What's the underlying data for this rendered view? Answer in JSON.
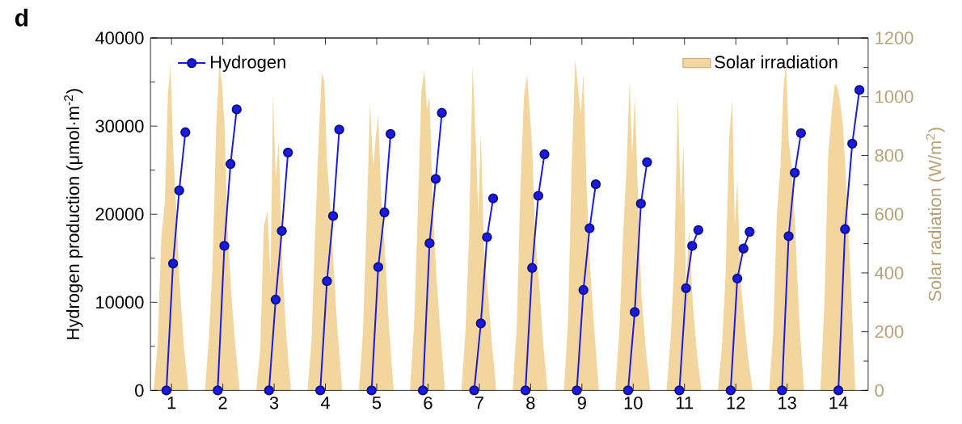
{
  "chart_data": {
    "type": "line",
    "ylabel": "Hydrogen production (μmol·m$^{-2}$)",
    "y2label": "Solar radiation (W/m$^{2}$)",
    "annotations": [
      "d"
    ],
    "xlim": [
      0.59,
      14.58
    ],
    "xticks": [
      1,
      2,
      3,
      4,
      5,
      6,
      7,
      8,
      9,
      10,
      11,
      12,
      13,
      14
    ],
    "ylim": [
      0,
      40000
    ],
    "yticks": [
      0,
      10000,
      20000,
      30000,
      40000
    ],
    "y2lim": [
      0,
      1200
    ],
    "y2ticks": [
      0,
      200,
      400,
      600,
      800,
      1000,
      1200
    ],
    "legend": "top",
    "series": [
      {
        "name": "Solar irradiation",
        "type": "area",
        "axis": "y2",
        "color": "#F2D69E",
        "x": [
          0.65,
          0.73,
          0.8,
          0.87,
          0.93,
          0.98,
          1.03,
          1.09,
          1.16,
          1.24,
          1.33,
          1.5,
          1.65,
          1.73,
          1.8,
          1.87,
          1.93,
          1.98,
          2.03,
          2.09,
          2.16,
          2.24,
          2.33,
          2.5,
          2.65,
          2.73,
          2.8,
          2.87,
          2.93,
          2.98,
          3.03,
          3.09,
          3.16,
          3.24,
          3.33,
          3.5,
          3.65,
          3.73,
          3.8,
          3.87,
          3.93,
          3.98,
          4.03,
          4.09,
          4.16,
          4.24,
          4.33,
          4.5,
          4.65,
          4.73,
          4.8,
          4.87,
          4.93,
          4.98,
          5.03,
          5.09,
          5.16,
          5.24,
          5.33,
          5.5,
          5.65,
          5.73,
          5.8,
          5.87,
          5.93,
          5.98,
          6.03,
          6.09,
          6.16,
          6.24,
          6.33,
          6.5,
          6.65,
          6.73,
          6.8,
          6.87,
          6.93,
          6.98,
          7.03,
          7.09,
          7.16,
          7.24,
          7.33,
          7.5,
          7.65,
          7.73,
          7.8,
          7.87,
          7.93,
          7.98,
          8.03,
          8.09,
          8.16,
          8.24,
          8.33,
          8.5,
          8.65,
          8.73,
          8.8,
          8.87,
          8.93,
          8.98,
          9.03,
          9.09,
          9.16,
          9.24,
          9.33,
          9.5,
          9.65,
          9.73,
          9.8,
          9.87,
          9.93,
          9.98,
          10.03,
          10.09,
          10.16,
          10.24,
          10.33,
          10.5,
          10.65,
          10.73,
          10.8,
          10.87,
          10.93,
          10.98,
          11.03,
          11.09,
          11.16,
          11.24,
          11.33,
          11.5,
          11.65,
          11.73,
          11.8,
          11.87,
          11.93,
          11.98,
          12.03,
          12.09,
          12.16,
          12.24,
          12.33,
          12.5,
          12.65,
          12.73,
          12.8,
          12.87,
          12.93,
          12.98,
          13.03,
          13.09,
          13.16,
          13.24,
          13.33,
          13.5,
          13.65,
          13.73,
          13.8,
          13.87,
          13.93,
          13.98,
          14.03,
          14.09,
          14.16,
          14.24,
          14.33
        ],
        "values": [
          0,
          160,
          520,
          640,
          1010,
          1110,
          830,
          620,
          360,
          150,
          0,
          null,
          0,
          180,
          430,
          890,
          1110,
          1050,
          920,
          560,
          340,
          160,
          0,
          null,
          0,
          140,
          560,
          610,
          390,
          1014,
          720,
          850,
          420,
          180,
          0,
          null,
          0,
          170,
          540,
          860,
          1083,
          1050,
          780,
          640,
          420,
          190,
          0,
          null,
          0,
          190,
          560,
          980,
          760,
          860,
          940,
          650,
          470,
          210,
          0,
          null,
          0,
          230,
          600,
          1020,
          1090,
          960,
          1000,
          640,
          400,
          200,
          0,
          null,
          0,
          200,
          520,
          1110,
          850,
          600,
          880,
          480,
          350,
          170,
          0,
          null,
          0,
          220,
          680,
          1000,
          1075,
          960,
          830,
          520,
          380,
          170,
          0,
          null,
          0,
          240,
          760,
          1130,
          1020,
          940,
          1080,
          700,
          420,
          210,
          0,
          null,
          0,
          200,
          520,
          760,
          1055,
          800,
          1000,
          680,
          330,
          150,
          0,
          null,
          0,
          180,
          430,
          1000,
          620,
          840,
          360,
          550,
          300,
          130,
          0,
          null,
          0,
          150,
          390,
          860,
          990,
          560,
          720,
          380,
          250,
          110,
          0,
          null,
          0,
          200,
          600,
          760,
          1030,
          1120,
          850,
          760,
          540,
          230,
          0,
          null,
          0,
          310,
          800,
          950,
          1045,
          1030,
          990,
          900,
          680,
          380,
          0
        ]
      },
      {
        "name": "Hydrogen",
        "color": "#1A1AE6",
        "marker": "circle",
        "x": [
          0.9,
          1.03,
          1.15,
          1.27,
          1.5,
          1.9,
          2.03,
          2.15,
          2.27,
          2.5,
          2.9,
          3.03,
          3.15,
          3.27,
          3.5,
          3.9,
          4.03,
          4.15,
          4.27,
          4.5,
          4.9,
          5.03,
          5.15,
          5.27,
          5.5,
          5.9,
          6.03,
          6.15,
          6.27,
          6.5,
          6.9,
          7.03,
          7.15,
          7.27,
          7.5,
          7.9,
          8.03,
          8.15,
          8.27,
          8.5,
          8.9,
          9.03,
          9.15,
          9.27,
          9.5,
          9.9,
          10.03,
          10.15,
          10.27,
          10.5,
          10.9,
          11.03,
          11.15,
          11.27,
          11.5,
          11.9,
          12.03,
          12.15,
          12.27,
          12.5,
          12.9,
          13.03,
          13.15,
          13.27,
          13.5,
          14.0,
          14.13,
          14.27,
          14.41
        ],
        "values": [
          0,
          14400,
          22700,
          29300,
          null,
          0,
          16400,
          25700,
          31900,
          null,
          0,
          10300,
          18100,
          27000,
          null,
          0,
          12400,
          19800,
          29600,
          null,
          0,
          14000,
          20200,
          29100,
          null,
          0,
          16700,
          24000,
          31500,
          null,
          0,
          7600,
          17400,
          21800,
          null,
          0,
          13900,
          22100,
          26800,
          null,
          0,
          11400,
          18400,
          23400,
          null,
          0,
          8900,
          21200,
          25900,
          null,
          0,
          11600,
          16400,
          18200,
          null,
          0,
          12700,
          16100,
          18000,
          null,
          0,
          17500,
          24700,
          29200,
          null,
          0,
          18300,
          28000,
          34100
        ]
      }
    ]
  }
}
